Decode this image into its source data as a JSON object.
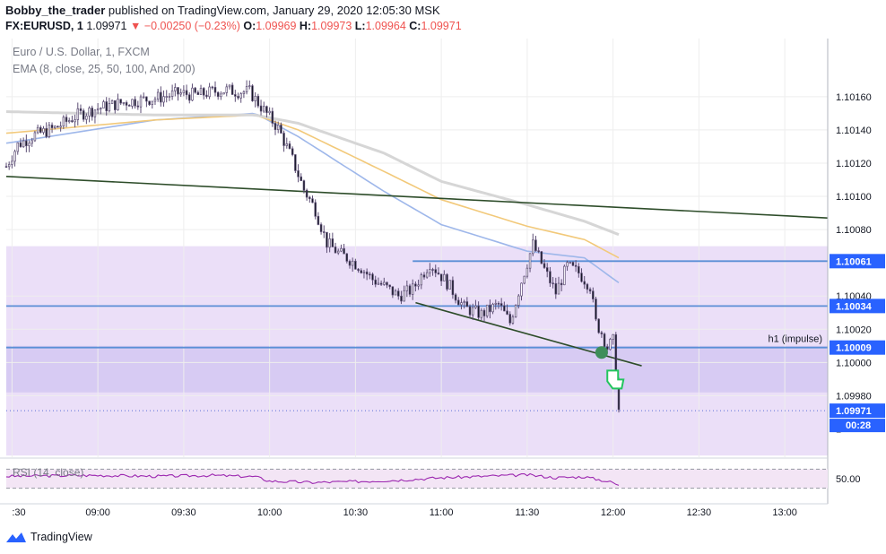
{
  "header": {
    "author": "Bobby_the_trader",
    "published_text": " published on TradingView.com, January 29, 2020 12:05:30 MSK",
    "symbol_line": {
      "symbol": "FX:EURUSD, 1",
      "price": "1.09971",
      "change": "▼ −0.00250 (−0.23%)",
      "o_label": "O:",
      "o": "1.09969",
      "h_label": "H:",
      "h": "1.09973",
      "l_label": "L:",
      "l": "1.09964",
      "c_label": "C:",
      "c": "1.09971"
    }
  },
  "footer": {
    "brand": "TradingView"
  },
  "colors": {
    "up": "#ffffff",
    "down": "#131722",
    "candle_border": "#5d4e75",
    "price_line_label": "#2962ff",
    "neg": "#ef5350",
    "zone_light": "#e8d9f7",
    "zone_dark": "#d3c8f2",
    "hline": "#5b8fd6",
    "trendline": "#2e4d2a",
    "ema8": "#ffffff",
    "ema25": "#ffffff",
    "ema50": "#9eb7ea",
    "ema100": "#f2c97a",
    "ema200": "#d6d6d6",
    "rsi": "#9c27b0",
    "rsi_bg": "#f3e5f5"
  },
  "chart_data": {
    "type": "candlestick",
    "title": "Euro / U.S. Dollar, 1, FXCM",
    "indicator_label": "EMA (8, close, 25, 50, 100, And 200)",
    "yaxis": {
      "ticks": [
        "1.10160",
        "1.10140",
        "1.10120",
        "1.10100",
        "1.10080",
        "1.10040",
        "1.10020",
        "1.10000",
        "1.09980"
      ],
      "tick_values": [
        1.1016,
        1.1014,
        1.1012,
        1.101,
        1.1008,
        1.1004,
        1.1002,
        1.1,
        1.0998
      ],
      "range": [
        1.09943,
        1.10195
      ]
    },
    "xaxis": {
      "ticks": [
        ":30",
        "09:00",
        "09:30",
        "10:00",
        "10:30",
        "11:00",
        "11:30",
        "12:00",
        "12:30",
        "13:00"
      ],
      "tick_minutes": [
        510,
        540,
        570,
        600,
        630,
        660,
        690,
        720,
        750,
        780
      ],
      "range_minutes": [
        508,
        795
      ]
    },
    "price_labels": [
      {
        "value": 1.10061,
        "text": "1.10061"
      },
      {
        "value": 1.10034,
        "text": "1.10034"
      },
      {
        "value": 1.10009,
        "text": "1.10009"
      },
      {
        "value": 1.09971,
        "text": "1.09971"
      }
    ],
    "countdown": "00:28",
    "zone_label": "h1 (impulse)",
    "zones": [
      {
        "from": 1.1007,
        "to": 1.09944,
        "shade": "light"
      },
      {
        "from": 1.1001,
        "to": 1.09982,
        "shade": "dark"
      }
    ],
    "hlines": [
      1.10061,
      1.10034,
      1.10009
    ],
    "trendlines": [
      {
        "x1": 508,
        "y1": 1.10112,
        "x2": 795,
        "y2": 1.10087
      },
      {
        "x1": 651,
        "y1": 1.10036,
        "x2": 730,
        "y2": 1.09998
      }
    ],
    "marker_circle": {
      "x": 716,
      "y": 1.10006
    },
    "ohlc_anchors_minutes": [
      508,
      512,
      518,
      525,
      533,
      540,
      550,
      560,
      568,
      575,
      580,
      585,
      589,
      593,
      597,
      603,
      608,
      612,
      616,
      620,
      624,
      628,
      632,
      636,
      640,
      645,
      650,
      656,
      662,
      668,
      674,
      680,
      684,
      688,
      692,
      696,
      700,
      704,
      708,
      712,
      714,
      716,
      718,
      720,
      722
    ],
    "ohlc_anchors_close": [
      1.10118,
      1.10131,
      1.10137,
      1.10141,
      1.10149,
      1.10153,
      1.10157,
      1.10159,
      1.10162,
      1.10161,
      1.10163,
      1.10164,
      1.10163,
      1.10163,
      1.10154,
      1.10141,
      1.10122,
      1.10104,
      1.10092,
      1.10072,
      1.10066,
      1.10062,
      1.10057,
      1.1005,
      1.10046,
      1.1004,
      1.10044,
      1.1006,
      1.10048,
      1.10033,
      1.10029,
      1.10035,
      1.10024,
      1.10049,
      1.10071,
      1.10056,
      1.10042,
      1.10058,
      1.10054,
      1.10046,
      1.10024,
      1.10018,
      1.10009,
      1.10013,
      1.09971
    ],
    "rsi": {
      "label": "RSI (14, close)",
      "tick": "50.00",
      "levels": [
        70,
        30
      ],
      "range": [
        20,
        80
      ],
      "values_minutes": [
        508,
        520,
        540,
        560,
        580,
        595,
        600,
        615,
        630,
        645,
        660,
        675,
        690,
        700,
        710,
        720,
        722
      ],
      "values": [
        55,
        56,
        57,
        55,
        57,
        54,
        45,
        42,
        44,
        47,
        52,
        55,
        58,
        52,
        54,
        42,
        35
      ]
    },
    "emas": [
      {
        "period": 50,
        "minutes": [
          508,
          560,
          595,
          610,
          640,
          660,
          690,
          710,
          722
        ],
        "values": [
          1.10132,
          1.10146,
          1.1015,
          1.10136,
          1.10103,
          1.10083,
          1.10067,
          1.10063,
          1.10048
        ]
      },
      {
        "period": 100,
        "minutes": [
          508,
          560,
          595,
          610,
          640,
          660,
          690,
          710,
          722
        ],
        "values": [
          1.10138,
          1.10146,
          1.10149,
          1.1014,
          1.10115,
          1.10098,
          1.10082,
          1.10074,
          1.10063
        ]
      },
      {
        "period": 200,
        "minutes": [
          508,
          560,
          595,
          610,
          640,
          660,
          690,
          710,
          722
        ],
        "values": [
          1.10151,
          1.10149,
          1.10149,
          1.10144,
          1.10126,
          1.10109,
          1.10095,
          1.10085,
          1.10077
        ]
      }
    ]
  }
}
